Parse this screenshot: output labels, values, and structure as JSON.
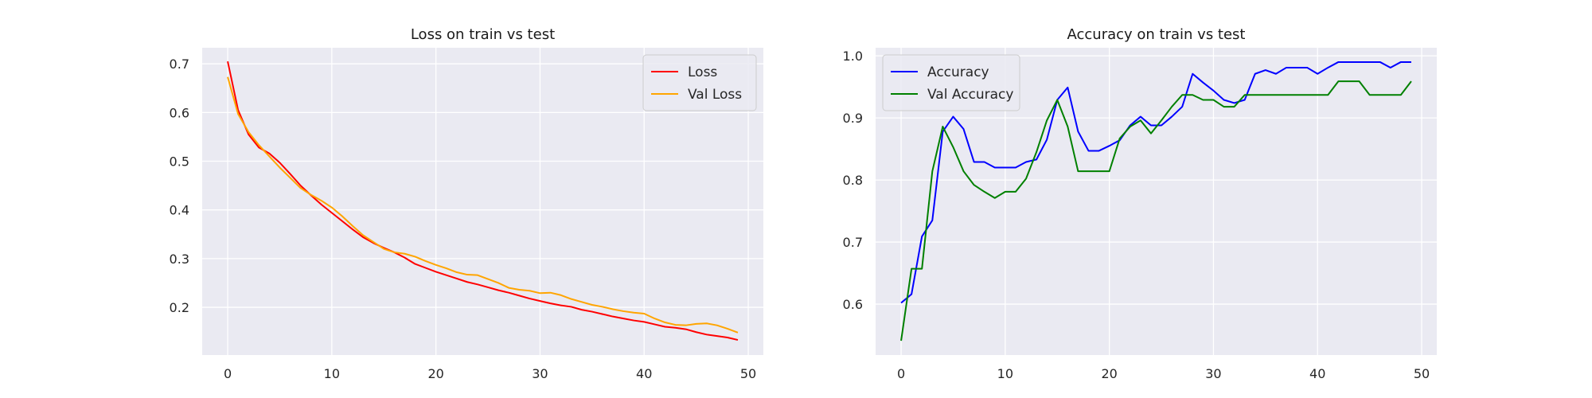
{
  "chart_data": [
    {
      "type": "line",
      "title": "Loss on train vs test",
      "xlabel": "",
      "ylabel": "",
      "xlim": [
        -2.45,
        51.45
      ],
      "ylim": [
        0.102,
        0.733
      ],
      "xticks": [
        0,
        10,
        20,
        30,
        40,
        50
      ],
      "yticks": [
        0.2,
        0.3,
        0.4,
        0.5,
        0.6,
        0.7
      ],
      "grid": true,
      "legend_position": "upper right",
      "series": [
        {
          "name": "Loss",
          "color": "#ff0000",
          "x": [
            0,
            1,
            2,
            3,
            4,
            5,
            6,
            7,
            8,
            9,
            10,
            11,
            12,
            13,
            14,
            15,
            16,
            17,
            18,
            19,
            20,
            21,
            22,
            23,
            24,
            25,
            26,
            27,
            28,
            29,
            30,
            31,
            32,
            33,
            34,
            35,
            36,
            37,
            38,
            39,
            40,
            41,
            42,
            43,
            44,
            45,
            46,
            47,
            48,
            49
          ],
          "values": [
            0.705,
            0.605,
            0.555,
            0.528,
            0.516,
            0.497,
            0.474,
            0.45,
            0.43,
            0.411,
            0.394,
            0.377,
            0.36,
            0.344,
            0.332,
            0.322,
            0.313,
            0.302,
            0.289,
            0.281,
            0.273,
            0.266,
            0.259,
            0.252,
            0.247,
            0.241,
            0.235,
            0.23,
            0.224,
            0.218,
            0.213,
            0.208,
            0.204,
            0.201,
            0.195,
            0.191,
            0.186,
            0.181,
            0.177,
            0.173,
            0.17,
            0.165,
            0.16,
            0.158,
            0.155,
            0.149,
            0.144,
            0.141,
            0.138,
            0.133
          ]
        },
        {
          "name": "Val Loss",
          "color": "#ffa500",
          "x": [
            0,
            1,
            2,
            3,
            4,
            5,
            6,
            7,
            8,
            9,
            10,
            11,
            12,
            13,
            14,
            15,
            16,
            17,
            18,
            19,
            20,
            21,
            22,
            23,
            24,
            25,
            26,
            27,
            28,
            29,
            30,
            31,
            32,
            33,
            34,
            35,
            36,
            37,
            38,
            39,
            40,
            41,
            42,
            43,
            44,
            45,
            46,
            47,
            48,
            49
          ],
          "values": [
            0.673,
            0.597,
            0.56,
            0.533,
            0.51,
            0.487,
            0.466,
            0.445,
            0.431,
            0.419,
            0.405,
            0.387,
            0.367,
            0.348,
            0.334,
            0.32,
            0.313,
            0.31,
            0.304,
            0.295,
            0.287,
            0.28,
            0.272,
            0.267,
            0.266,
            0.258,
            0.25,
            0.24,
            0.236,
            0.234,
            0.229,
            0.23,
            0.225,
            0.217,
            0.211,
            0.205,
            0.201,
            0.196,
            0.192,
            0.189,
            0.187,
            0.177,
            0.169,
            0.164,
            0.163,
            0.166,
            0.167,
            0.163,
            0.156,
            0.148
          ]
        }
      ]
    },
    {
      "type": "line",
      "title": "Accuracy on train vs test",
      "xlabel": "",
      "ylabel": "",
      "xlim": [
        -2.45,
        51.45
      ],
      "ylim": [
        0.518,
        1.013
      ],
      "xticks": [
        0,
        10,
        20,
        30,
        40,
        50
      ],
      "yticks": [
        0.6,
        0.7,
        0.8,
        0.9,
        1.0
      ],
      "grid": true,
      "legend_position": "upper left",
      "series": [
        {
          "name": "Accuracy",
          "color": "#0000ff",
          "x": [
            0,
            1,
            2,
            3,
            4,
            5,
            6,
            7,
            8,
            9,
            10,
            11,
            12,
            13,
            14,
            15,
            16,
            17,
            18,
            19,
            20,
            21,
            22,
            23,
            24,
            25,
            26,
            27,
            28,
            29,
            30,
            31,
            32,
            33,
            34,
            35,
            36,
            37,
            38,
            39,
            40,
            41,
            42,
            43,
            44,
            45,
            46,
            47,
            48,
            49
          ],
          "values": [
            0.602,
            0.616,
            0.709,
            0.735,
            0.878,
            0.902,
            0.882,
            0.829,
            0.829,
            0.82,
            0.82,
            0.82,
            0.829,
            0.833,
            0.865,
            0.929,
            0.949,
            0.878,
            0.847,
            0.847,
            0.855,
            0.864,
            0.888,
            0.902,
            0.888,
            0.888,
            0.902,
            0.918,
            0.971,
            0.957,
            0.944,
            0.929,
            0.924,
            0.929,
            0.971,
            0.977,
            0.971,
            0.981,
            0.981,
            0.981,
            0.971,
            0.981,
            0.99,
            0.99,
            0.99,
            0.99,
            0.99,
            0.981,
            0.99,
            0.99
          ]
        },
        {
          "name": "Val Accuracy",
          "color": "#008000",
          "x": [
            0,
            1,
            2,
            3,
            4,
            5,
            6,
            7,
            8,
            9,
            10,
            11,
            12,
            13,
            14,
            15,
            16,
            17,
            18,
            19,
            20,
            21,
            22,
            23,
            24,
            25,
            26,
            27,
            28,
            29,
            30,
            31,
            32,
            33,
            34,
            35,
            36,
            37,
            38,
            39,
            40,
            41,
            42,
            43,
            44,
            45,
            46,
            47,
            48,
            49
          ],
          "values": [
            0.541,
            0.657,
            0.657,
            0.814,
            0.886,
            0.853,
            0.814,
            0.792,
            0.781,
            0.771,
            0.781,
            0.781,
            0.802,
            0.845,
            0.896,
            0.929,
            0.886,
            0.814,
            0.814,
            0.814,
            0.814,
            0.867,
            0.886,
            0.896,
            0.875,
            0.896,
            0.918,
            0.937,
            0.937,
            0.929,
            0.929,
            0.918,
            0.918,
            0.937,
            0.937,
            0.937,
            0.937,
            0.937,
            0.937,
            0.937,
            0.937,
            0.937,
            0.959,
            0.959,
            0.959,
            0.937,
            0.937,
            0.937,
            0.937,
            0.959
          ]
        }
      ]
    }
  ]
}
